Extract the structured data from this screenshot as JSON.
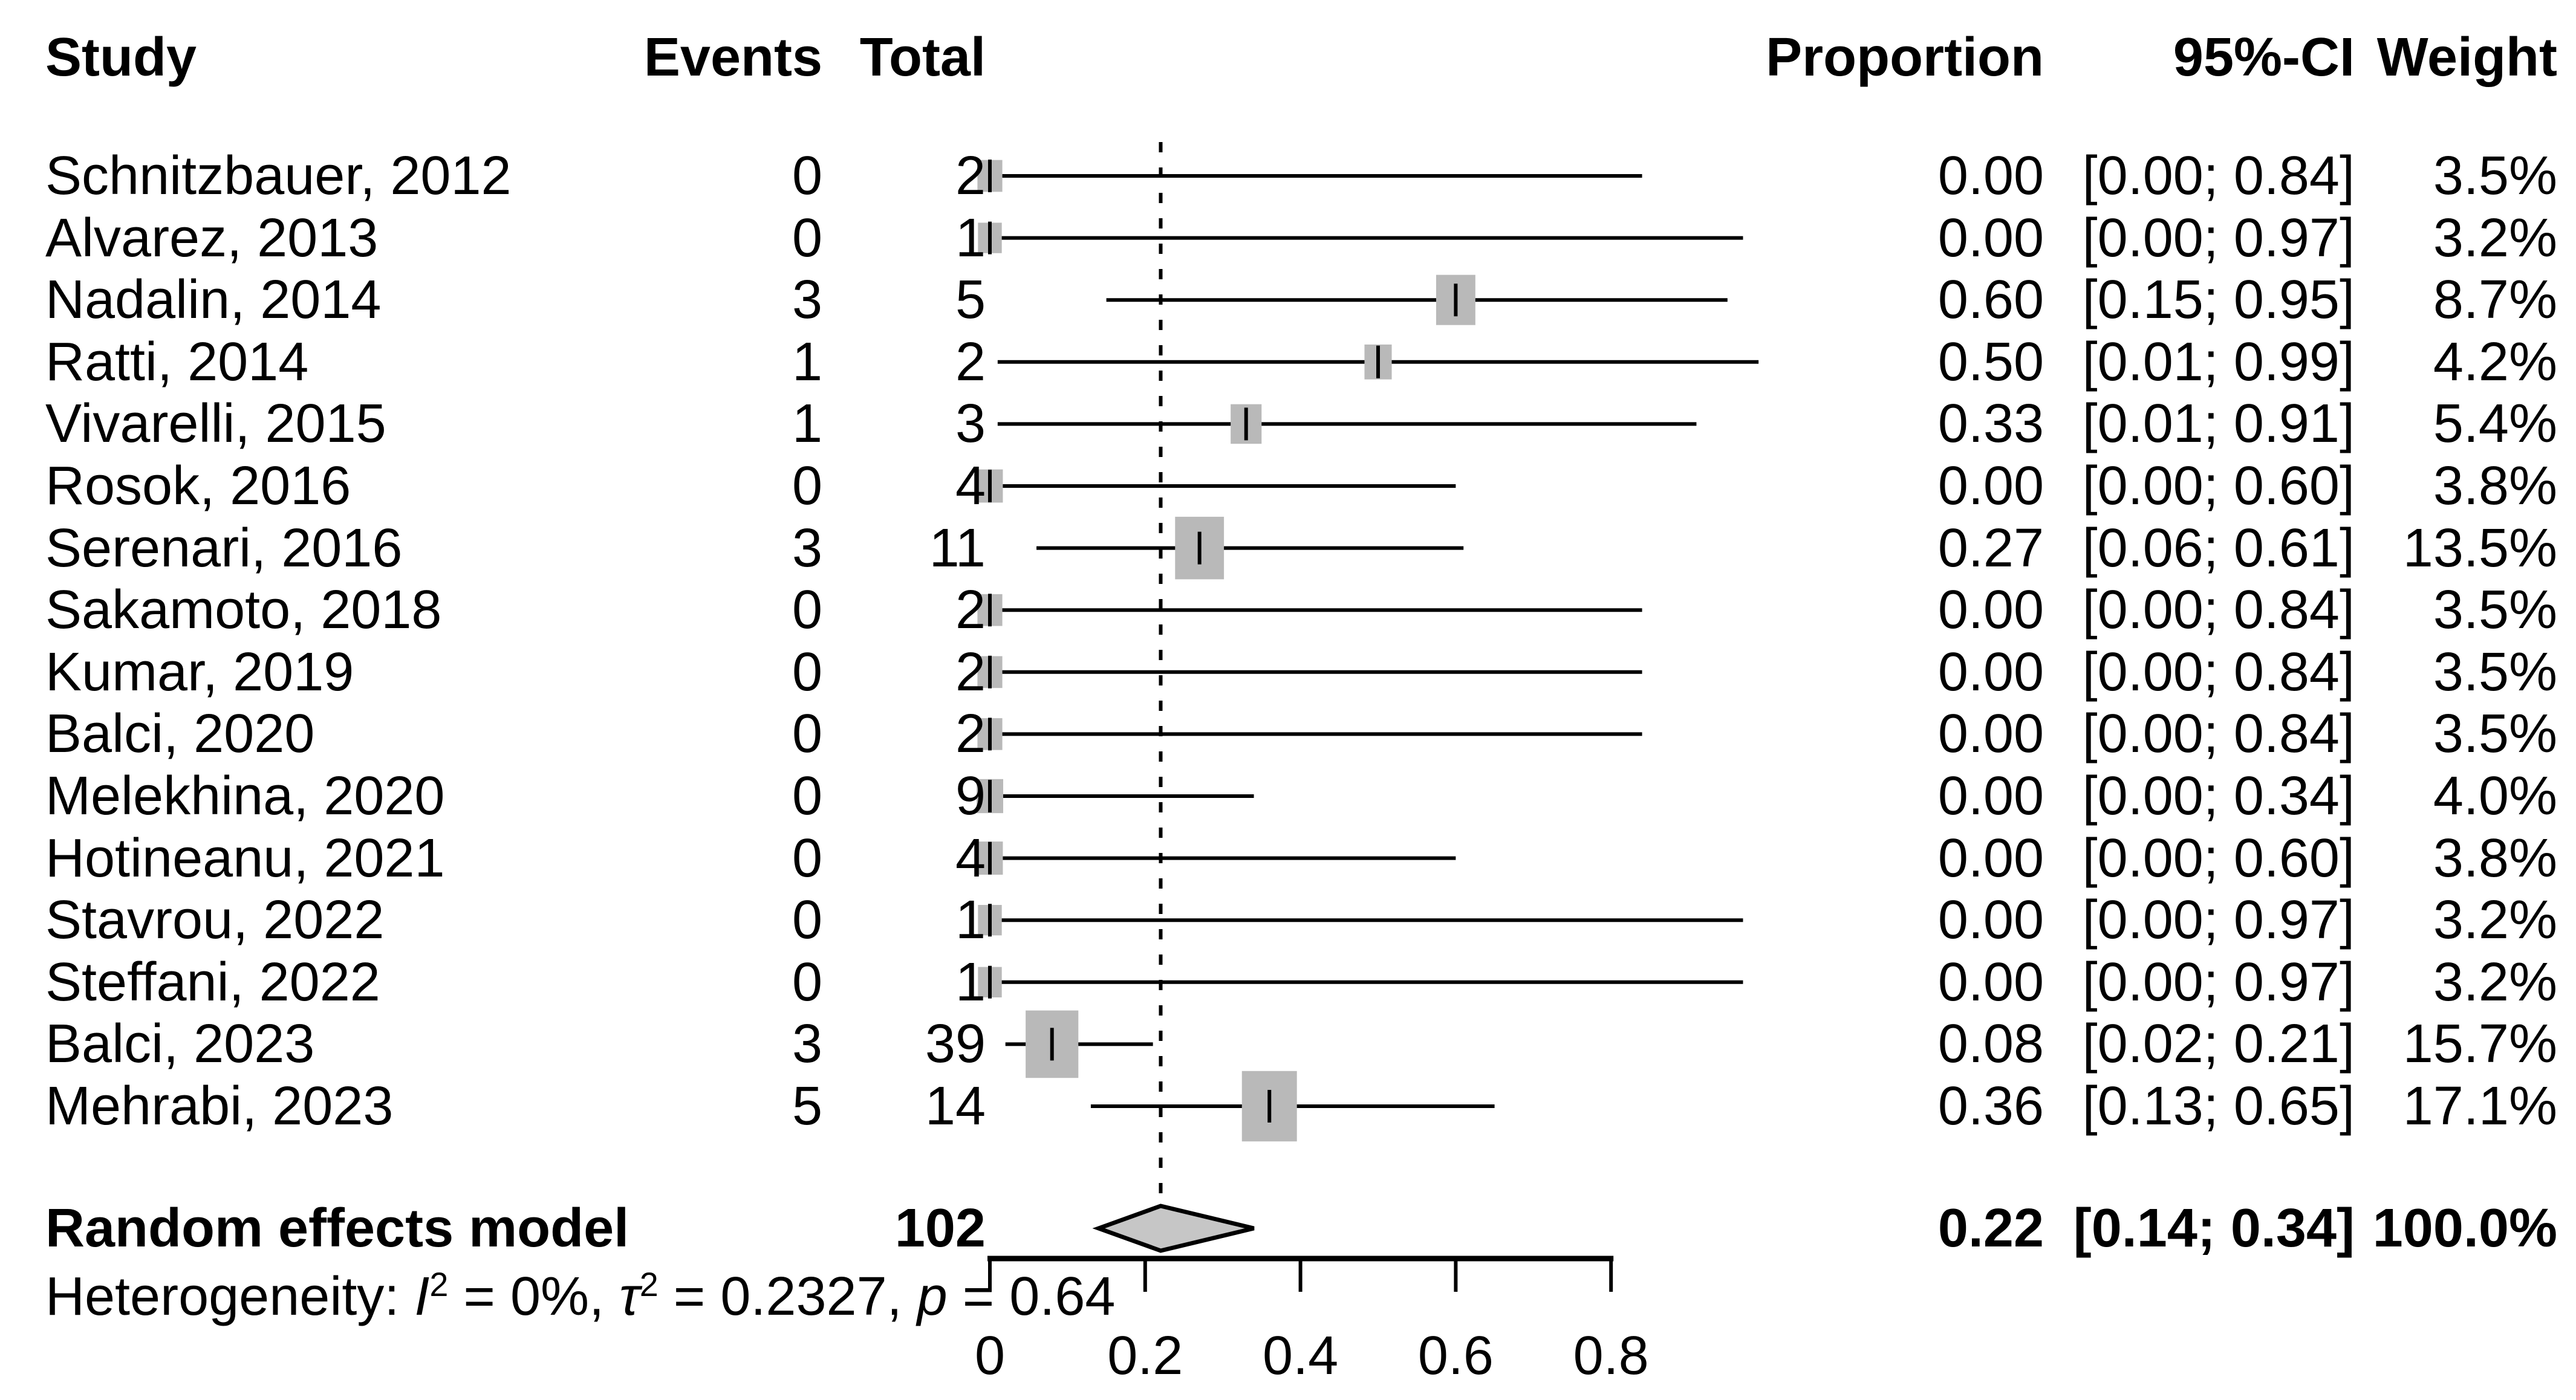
{
  "columns": {
    "study": "Study",
    "events": "Events",
    "total": "Total",
    "proportion": "Proportion",
    "ci": "95%-CI",
    "weight": "Weight"
  },
  "chart_data": {
    "type": "forest",
    "title": "",
    "x_axis": {
      "range": [
        0,
        1.0
      ],
      "ticks": [
        {
          "value": 0,
          "label": "0"
        },
        {
          "value": 0.2,
          "label": "0.2"
        },
        {
          "value": 0.4,
          "label": "0.4"
        },
        {
          "value": 0.6,
          "label": "0.6"
        },
        {
          "value": 0.8,
          "label": "0.8"
        }
      ],
      "grid": false
    },
    "reference_line": 0.22,
    "studies": [
      {
        "study": "Schnitzbauer, 2012",
        "events": "0",
        "total": "2",
        "proportion": 0.0,
        "proportion_text": "0.00",
        "ci_low": 0.0,
        "ci_high": 0.84,
        "ci_text": "[0.00; 0.84]",
        "weight": 3.5,
        "weight_text": "3.5%"
      },
      {
        "study": "Alvarez, 2013",
        "events": "0",
        "total": "1",
        "proportion": 0.0,
        "proportion_text": "0.00",
        "ci_low": 0.0,
        "ci_high": 0.97,
        "ci_text": "[0.00; 0.97]",
        "weight": 3.2,
        "weight_text": "3.2%"
      },
      {
        "study": "Nadalin, 2014",
        "events": "3",
        "total": "5",
        "proportion": 0.6,
        "proportion_text": "0.60",
        "ci_low": 0.15,
        "ci_high": 0.95,
        "ci_text": "[0.15; 0.95]",
        "weight": 8.7,
        "weight_text": "8.7%"
      },
      {
        "study": "Ratti, 2014",
        "events": "1",
        "total": "2",
        "proportion": 0.5,
        "proportion_text": "0.50",
        "ci_low": 0.01,
        "ci_high": 0.99,
        "ci_text": "[0.01; 0.99]",
        "weight": 4.2,
        "weight_text": "4.2%"
      },
      {
        "study": "Vivarelli, 2015",
        "events": "1",
        "total": "3",
        "proportion": 0.33,
        "proportion_text": "0.33",
        "ci_low": 0.01,
        "ci_high": 0.91,
        "ci_text": "[0.01; 0.91]",
        "weight": 5.4,
        "weight_text": "5.4%"
      },
      {
        "study": "Rosok, 2016",
        "events": "0",
        "total": "4",
        "proportion": 0.0,
        "proportion_text": "0.00",
        "ci_low": 0.0,
        "ci_high": 0.6,
        "ci_text": "[0.00; 0.60]",
        "weight": 3.8,
        "weight_text": "3.8%"
      },
      {
        "study": "Serenari, 2016",
        "events": "3",
        "total": "11",
        "proportion": 0.27,
        "proportion_text": "0.27",
        "ci_low": 0.06,
        "ci_high": 0.61,
        "ci_text": "[0.06; 0.61]",
        "weight": 13.5,
        "weight_text": "13.5%"
      },
      {
        "study": "Sakamoto, 2018",
        "events": "0",
        "total": "2",
        "proportion": 0.0,
        "proportion_text": "0.00",
        "ci_low": 0.0,
        "ci_high": 0.84,
        "ci_text": "[0.00; 0.84]",
        "weight": 3.5,
        "weight_text": "3.5%"
      },
      {
        "study": "Kumar, 2019",
        "events": "0",
        "total": "2",
        "proportion": 0.0,
        "proportion_text": "0.00",
        "ci_low": 0.0,
        "ci_high": 0.84,
        "ci_text": "[0.00; 0.84]",
        "weight": 3.5,
        "weight_text": "3.5%"
      },
      {
        "study": "Balci, 2020",
        "events": "0",
        "total": "2",
        "proportion": 0.0,
        "proportion_text": "0.00",
        "ci_low": 0.0,
        "ci_high": 0.84,
        "ci_text": "[0.00; 0.84]",
        "weight": 3.5,
        "weight_text": "3.5%"
      },
      {
        "study": "Melekhina, 2020",
        "events": "0",
        "total": "9",
        "proportion": 0.0,
        "proportion_text": "0.00",
        "ci_low": 0.0,
        "ci_high": 0.34,
        "ci_text": "[0.00; 0.34]",
        "weight": 4.0,
        "weight_text": "4.0%"
      },
      {
        "study": "Hotineanu, 2021",
        "events": "0",
        "total": "4",
        "proportion": 0.0,
        "proportion_text": "0.00",
        "ci_low": 0.0,
        "ci_high": 0.6,
        "ci_text": "[0.00; 0.60]",
        "weight": 3.8,
        "weight_text": "3.8%"
      },
      {
        "study": "Stavrou, 2022",
        "events": "0",
        "total": "1",
        "proportion": 0.0,
        "proportion_text": "0.00",
        "ci_low": 0.0,
        "ci_high": 0.97,
        "ci_text": "[0.00; 0.97]",
        "weight": 3.2,
        "weight_text": "3.2%"
      },
      {
        "study": "Steffani, 2022",
        "events": "0",
        "total": "1",
        "proportion": 0.0,
        "proportion_text": "0.00",
        "ci_low": 0.0,
        "ci_high": 0.97,
        "ci_text": "[0.00; 0.97]",
        "weight": 3.2,
        "weight_text": "3.2%"
      },
      {
        "study": "Balci, 2023",
        "events": "3",
        "total": "39",
        "proportion": 0.08,
        "proportion_text": "0.08",
        "ci_low": 0.02,
        "ci_high": 0.21,
        "ci_text": "[0.02; 0.21]",
        "weight": 15.7,
        "weight_text": "15.7%"
      },
      {
        "study": "Mehrabi, 2023",
        "events": "5",
        "total": "14",
        "proportion": 0.36,
        "proportion_text": "0.36",
        "ci_low": 0.13,
        "ci_high": 0.65,
        "ci_text": "[0.13; 0.65]",
        "weight": 17.1,
        "weight_text": "17.1%"
      }
    ],
    "summary": {
      "study": "Random effects model",
      "total": "102",
      "proportion": 0.22,
      "proportion_text": "0.22",
      "ci_low": 0.14,
      "ci_high": 0.34,
      "ci_text": "[0.14; 0.34]",
      "weight_text": "100.0%"
    },
    "heterogeneity": {
      "prefix": "Heterogeneity: ",
      "i_sym": "I",
      "i_sup": "2",
      "i_rest": " = 0%, ",
      "tau_sym": "τ",
      "tau_sup": "2",
      "tau_rest": " = 0.2327, ",
      "p_sym": "p",
      "p_rest": " = 0.64"
    },
    "colors": {
      "square": "#b9b9b9",
      "diamond": "#c6c6c6",
      "line": "#000000",
      "background": "#ffffff"
    }
  }
}
